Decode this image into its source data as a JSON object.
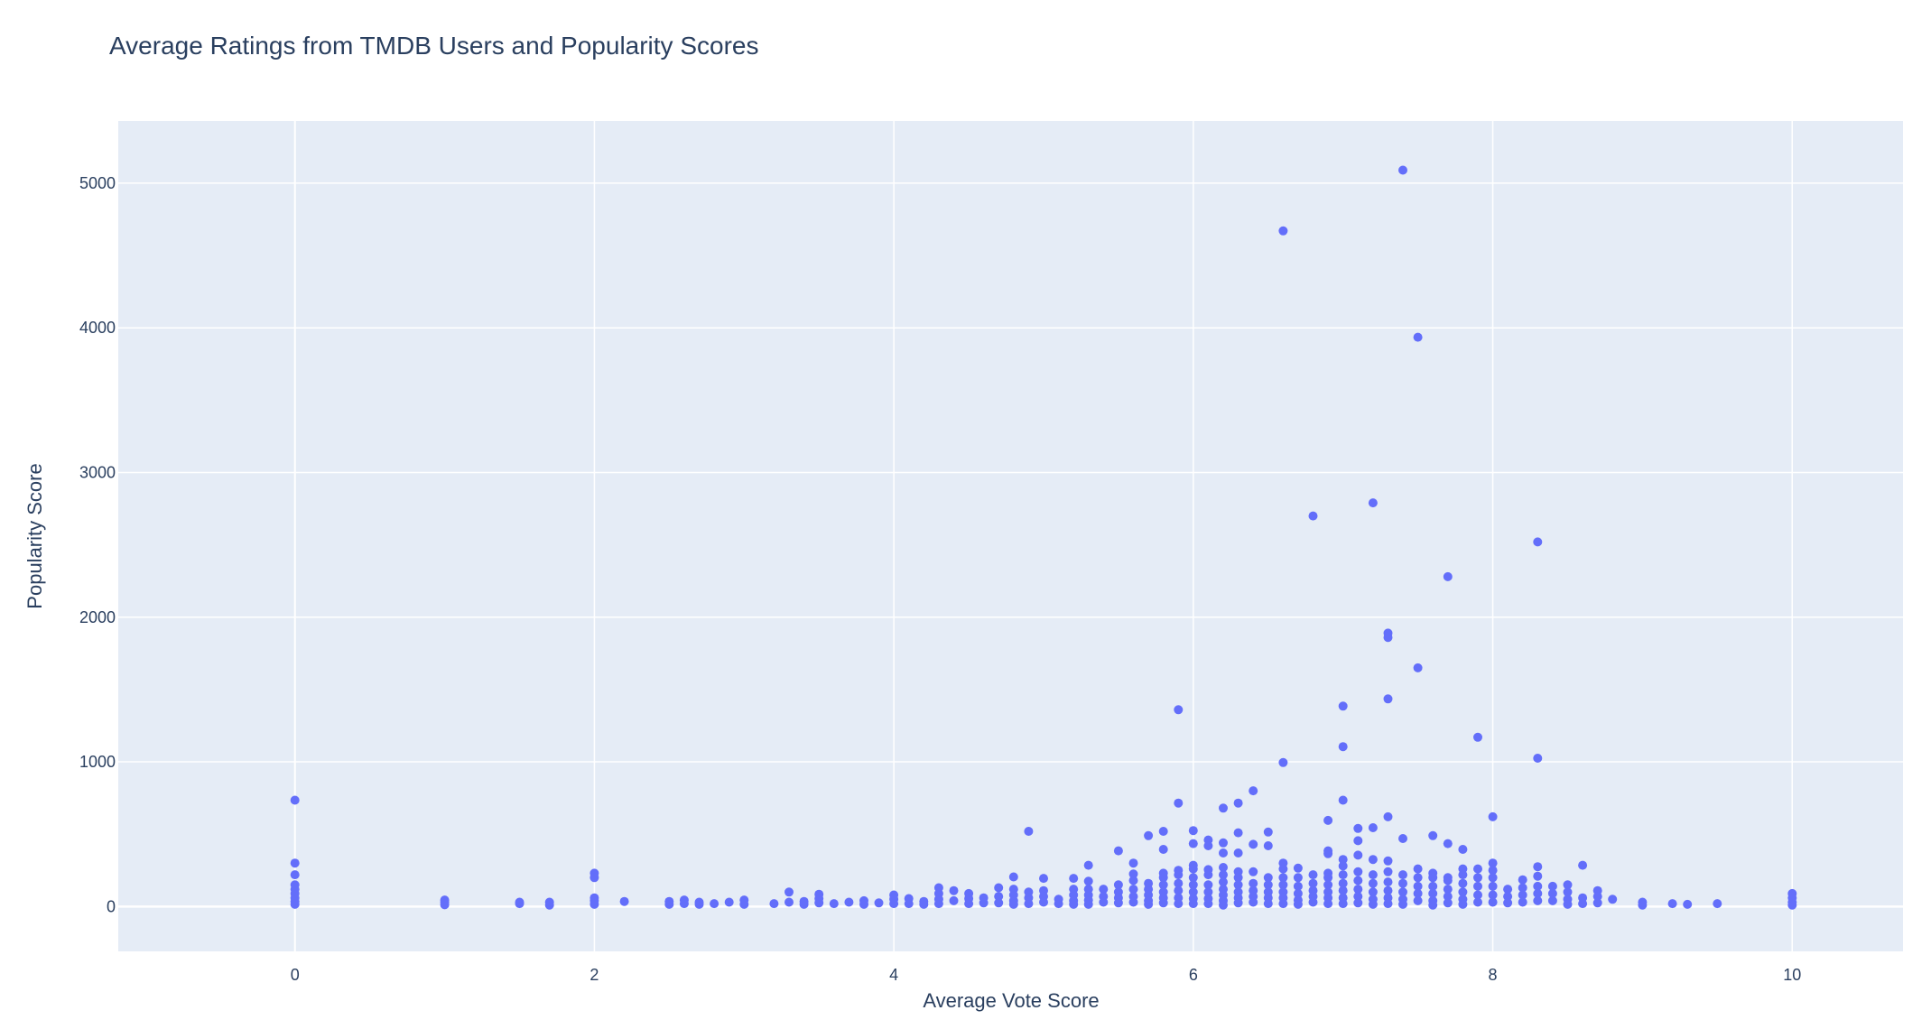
{
  "chart_data": {
    "type": "scatter",
    "title": "Average Ratings from TMDB Users and Popularity Scores",
    "xlabel": "Average Vote Score",
    "ylabel": "Popularity Score",
    "xlim": [
      -1.18,
      10.74
    ],
    "ylim": [
      -310,
      5430
    ],
    "x_ticks": [
      0,
      2,
      4,
      6,
      8,
      10
    ],
    "y_ticks": [
      0,
      1000,
      2000,
      3000,
      4000,
      5000
    ],
    "grid": true,
    "legend": "none",
    "colors": {
      "marker": "#636efa",
      "plot_bg": "#e5ecf6",
      "grid": "#ffffff",
      "text": "#2a3f5f"
    },
    "series": [
      {
        "points": [
          [
            7.4,
            5090
          ],
          [
            6.6,
            4670
          ],
          [
            7.5,
            3935
          ],
          [
            7.2,
            2790
          ],
          [
            6.8,
            2700
          ],
          [
            8.3,
            2520
          ],
          [
            7.7,
            2280
          ],
          [
            7.3,
            1890
          ],
          [
            7.3,
            1860
          ],
          [
            7.5,
            1650
          ],
          [
            7.3,
            1435
          ],
          [
            7.0,
            1385
          ],
          [
            5.9,
            1360
          ],
          [
            7.9,
            1170
          ],
          [
            7.0,
            1105
          ],
          [
            8.3,
            1025
          ],
          [
            6.6,
            995
          ],
          [
            6.4,
            800
          ],
          [
            0.0,
            735
          ],
          [
            7.0,
            735
          ],
          [
            6.3,
            715
          ],
          [
            5.9,
            715
          ],
          [
            6.2,
            680
          ],
          [
            7.3,
            620
          ],
          [
            8.0,
            620
          ],
          [
            6.9,
            595
          ],
          [
            7.1,
            540
          ],
          [
            7.2,
            545
          ],
          [
            4.9,
            520
          ],
          [
            5.8,
            520
          ],
          [
            6.0,
            525
          ],
          [
            6.5,
            515
          ],
          [
            6.3,
            510
          ],
          [
            5.7,
            490
          ],
          [
            7.6,
            490
          ],
          [
            7.4,
            470
          ],
          [
            6.1,
            460
          ],
          [
            7.1,
            455
          ],
          [
            6.2,
            440
          ],
          [
            6.0,
            435
          ],
          [
            7.7,
            435
          ],
          [
            6.4,
            430
          ],
          [
            6.1,
            420
          ],
          [
            6.5,
            420
          ],
          [
            5.8,
            395
          ],
          [
            7.8,
            395
          ],
          [
            5.5,
            385
          ],
          [
            6.9,
            385
          ],
          [
            6.2,
            370
          ],
          [
            6.3,
            370
          ],
          [
            6.9,
            365
          ],
          [
            7.1,
            355
          ],
          [
            7.0,
            325
          ],
          [
            7.2,
            325
          ],
          [
            7.3,
            315
          ],
          [
            0.0,
            300
          ],
          [
            5.6,
            300
          ],
          [
            6.6,
            300
          ],
          [
            8.0,
            300
          ],
          [
            5.3,
            285
          ],
          [
            6.0,
            285
          ],
          [
            8.6,
            285
          ],
          [
            8.3,
            275
          ],
          [
            6.2,
            270
          ],
          [
            6.7,
            265
          ],
          [
            7.5,
            260
          ],
          [
            7.9,
            260
          ],
          [
            7.8,
            260
          ],
          [
            6.1,
            255
          ],
          [
            5.9,
            250
          ],
          [
            8.0,
            250
          ],
          [
            2.0,
            230
          ],
          [
            0.0,
            220
          ],
          [
            6.8,
            220
          ],
          [
            6.9,
            230
          ],
          [
            5.6,
            225
          ],
          [
            5.8,
            230
          ],
          [
            6.3,
            240
          ],
          [
            6.4,
            240
          ],
          [
            7.6,
            230
          ],
          [
            8.3,
            210
          ],
          [
            2.0,
            200
          ],
          [
            4.8,
            205
          ],
          [
            5.2,
            195
          ],
          [
            5.0,
            195
          ],
          [
            7.7,
            200
          ],
          [
            8.2,
            185
          ],
          [
            5.3,
            175
          ],
          [
            5.7,
            160
          ],
          [
            8.5,
            150
          ],
          [
            0.0,
            150
          ],
          [
            0.0,
            120
          ],
          [
            0.0,
            90
          ],
          [
            0.0,
            60
          ],
          [
            0.0,
            35
          ],
          [
            0.0,
            15
          ],
          [
            1.0,
            45
          ],
          [
            1.0,
            30
          ],
          [
            1.0,
            12
          ],
          [
            1.5,
            30
          ],
          [
            1.5,
            20
          ],
          [
            1.7,
            30
          ],
          [
            1.7,
            10
          ],
          [
            2.0,
            60
          ],
          [
            2.0,
            40
          ],
          [
            2.0,
            15
          ],
          [
            2.2,
            35
          ],
          [
            2.5,
            35
          ],
          [
            2.5,
            15
          ],
          [
            2.6,
            45
          ],
          [
            2.6,
            20
          ],
          [
            2.7,
            30
          ],
          [
            2.7,
            15
          ],
          [
            2.8,
            20
          ],
          [
            2.9,
            30
          ],
          [
            3.0,
            45
          ],
          [
            3.0,
            15
          ],
          [
            3.2,
            20
          ],
          [
            3.3,
            100
          ],
          [
            3.3,
            30
          ],
          [
            3.4,
            35
          ],
          [
            3.4,
            15
          ],
          [
            3.5,
            85
          ],
          [
            3.5,
            55
          ],
          [
            3.5,
            25
          ],
          [
            3.6,
            20
          ],
          [
            3.7,
            30
          ],
          [
            3.8,
            40
          ],
          [
            3.8,
            15
          ],
          [
            3.9,
            25
          ],
          [
            4.0,
            80
          ],
          [
            4.0,
            50
          ],
          [
            4.0,
            20
          ],
          [
            4.1,
            55
          ],
          [
            4.1,
            20
          ],
          [
            4.2,
            35
          ],
          [
            4.2,
            15
          ],
          [
            4.3,
            130
          ],
          [
            4.3,
            90
          ],
          [
            4.3,
            50
          ],
          [
            4.3,
            20
          ],
          [
            4.4,
            110
          ],
          [
            4.4,
            40
          ],
          [
            4.5,
            90
          ],
          [
            4.5,
            55
          ],
          [
            4.5,
            20
          ],
          [
            4.6,
            60
          ],
          [
            4.6,
            25
          ],
          [
            4.7,
            130
          ],
          [
            4.7,
            70
          ],
          [
            4.7,
            25
          ],
          [
            4.8,
            120
          ],
          [
            4.8,
            80
          ],
          [
            4.8,
            40
          ],
          [
            4.8,
            15
          ],
          [
            4.9,
            100
          ],
          [
            4.9,
            60
          ],
          [
            4.9,
            20
          ],
          [
            5.0,
            110
          ],
          [
            5.0,
            70
          ],
          [
            5.0,
            30
          ],
          [
            5.1,
            50
          ],
          [
            5.1,
            20
          ],
          [
            5.2,
            120
          ],
          [
            5.2,
            80
          ],
          [
            5.2,
            40
          ],
          [
            5.2,
            15
          ],
          [
            5.3,
            120
          ],
          [
            5.3,
            80
          ],
          [
            5.3,
            45
          ],
          [
            5.3,
            15
          ],
          [
            5.4,
            120
          ],
          [
            5.4,
            70
          ],
          [
            5.4,
            30
          ],
          [
            5.5,
            150
          ],
          [
            5.5,
            100
          ],
          [
            5.5,
            60
          ],
          [
            5.5,
            25
          ],
          [
            5.6,
            180
          ],
          [
            5.6,
            120
          ],
          [
            5.6,
            70
          ],
          [
            5.6,
            30
          ],
          [
            5.7,
            120
          ],
          [
            5.7,
            80
          ],
          [
            5.7,
            40
          ],
          [
            5.7,
            15
          ],
          [
            5.8,
            200
          ],
          [
            5.8,
            150
          ],
          [
            5.8,
            100
          ],
          [
            5.8,
            60
          ],
          [
            5.8,
            25
          ],
          [
            5.9,
            220
          ],
          [
            5.9,
            160
          ],
          [
            5.9,
            110
          ],
          [
            5.9,
            60
          ],
          [
            5.9,
            20
          ],
          [
            6.0,
            260
          ],
          [
            6.0,
            200
          ],
          [
            6.0,
            150
          ],
          [
            6.0,
            100
          ],
          [
            6.0,
            55
          ],
          [
            6.0,
            20
          ],
          [
            6.1,
            220
          ],
          [
            6.1,
            150
          ],
          [
            6.1,
            100
          ],
          [
            6.1,
            55
          ],
          [
            6.1,
            20
          ],
          [
            6.2,
            220
          ],
          [
            6.2,
            170
          ],
          [
            6.2,
            120
          ],
          [
            6.2,
            80
          ],
          [
            6.2,
            40
          ],
          [
            6.2,
            10
          ],
          [
            6.3,
            200
          ],
          [
            6.3,
            150
          ],
          [
            6.3,
            100
          ],
          [
            6.3,
            60
          ],
          [
            6.3,
            25
          ],
          [
            6.4,
            160
          ],
          [
            6.4,
            110
          ],
          [
            6.4,
            70
          ],
          [
            6.4,
            30
          ],
          [
            6.5,
            200
          ],
          [
            6.5,
            150
          ],
          [
            6.5,
            100
          ],
          [
            6.5,
            60
          ],
          [
            6.5,
            20
          ],
          [
            6.6,
            260
          ],
          [
            6.6,
            200
          ],
          [
            6.6,
            150
          ],
          [
            6.6,
            100
          ],
          [
            6.6,
            60
          ],
          [
            6.6,
            20
          ],
          [
            6.7,
            200
          ],
          [
            6.7,
            140
          ],
          [
            6.7,
            90
          ],
          [
            6.7,
            45
          ],
          [
            6.7,
            15
          ],
          [
            6.8,
            160
          ],
          [
            6.8,
            110
          ],
          [
            6.8,
            70
          ],
          [
            6.8,
            30
          ],
          [
            6.9,
            200
          ],
          [
            6.9,
            150
          ],
          [
            6.9,
            100
          ],
          [
            6.9,
            60
          ],
          [
            6.9,
            20
          ],
          [
            7.0,
            280
          ],
          [
            7.0,
            220
          ],
          [
            7.0,
            160
          ],
          [
            7.0,
            110
          ],
          [
            7.0,
            60
          ],
          [
            7.0,
            20
          ],
          [
            7.1,
            240
          ],
          [
            7.1,
            180
          ],
          [
            7.1,
            120
          ],
          [
            7.1,
            70
          ],
          [
            7.1,
            25
          ],
          [
            7.2,
            220
          ],
          [
            7.2,
            160
          ],
          [
            7.2,
            100
          ],
          [
            7.2,
            50
          ],
          [
            7.2,
            15
          ],
          [
            7.3,
            240
          ],
          [
            7.3,
            170
          ],
          [
            7.3,
            110
          ],
          [
            7.3,
            60
          ],
          [
            7.3,
            20
          ],
          [
            7.4,
            220
          ],
          [
            7.4,
            160
          ],
          [
            7.4,
            100
          ],
          [
            7.4,
            50
          ],
          [
            7.4,
            15
          ],
          [
            7.5,
            200
          ],
          [
            7.5,
            140
          ],
          [
            7.5,
            90
          ],
          [
            7.5,
            40
          ],
          [
            7.6,
            200
          ],
          [
            7.6,
            140
          ],
          [
            7.6,
            90
          ],
          [
            7.6,
            40
          ],
          [
            7.6,
            10
          ],
          [
            7.7,
            180
          ],
          [
            7.7,
            120
          ],
          [
            7.7,
            70
          ],
          [
            7.7,
            25
          ],
          [
            7.8,
            220
          ],
          [
            7.8,
            160
          ],
          [
            7.8,
            100
          ],
          [
            7.8,
            50
          ],
          [
            7.8,
            15
          ],
          [
            7.9,
            200
          ],
          [
            7.9,
            140
          ],
          [
            7.9,
            80
          ],
          [
            7.9,
            30
          ],
          [
            8.0,
            200
          ],
          [
            8.0,
            140
          ],
          [
            8.0,
            80
          ],
          [
            8.0,
            30
          ],
          [
            8.1,
            120
          ],
          [
            8.1,
            70
          ],
          [
            8.1,
            25
          ],
          [
            8.2,
            130
          ],
          [
            8.2,
            80
          ],
          [
            8.2,
            30
          ],
          [
            8.3,
            140
          ],
          [
            8.3,
            90
          ],
          [
            8.3,
            40
          ],
          [
            8.4,
            140
          ],
          [
            8.4,
            90
          ],
          [
            8.4,
            40
          ],
          [
            8.5,
            100
          ],
          [
            8.5,
            50
          ],
          [
            8.5,
            15
          ],
          [
            8.6,
            60
          ],
          [
            8.6,
            20
          ],
          [
            8.7,
            110
          ],
          [
            8.7,
            70
          ],
          [
            8.7,
            25
          ],
          [
            8.8,
            50
          ],
          [
            9.0,
            30
          ],
          [
            9.0,
            10
          ],
          [
            9.2,
            20
          ],
          [
            9.3,
            15
          ],
          [
            9.5,
            20
          ],
          [
            10.0,
            90
          ],
          [
            10.0,
            60
          ],
          [
            10.0,
            30
          ],
          [
            10.0,
            10
          ]
        ]
      }
    ]
  }
}
